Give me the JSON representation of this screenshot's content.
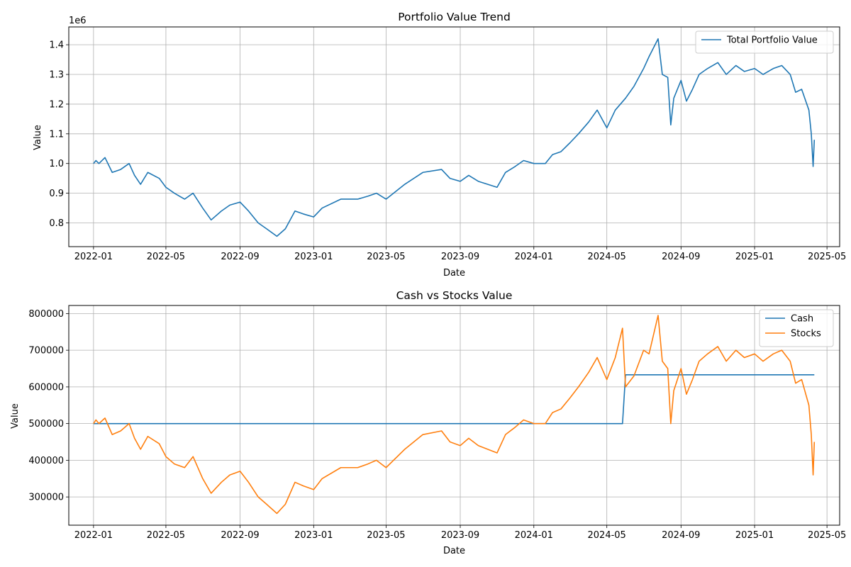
{
  "colors": {
    "series1": "#1f77b4",
    "series2": "#ff7f0e",
    "grid": "#b0b0b0"
  },
  "chart_data": [
    {
      "type": "line",
      "title": "Portfolio Value Trend",
      "xlabel": "Date",
      "ylabel": "Value",
      "y_offset_label": "1e6",
      "x_ticks": [
        "2022-01",
        "2022-05",
        "2022-09",
        "2023-01",
        "2023-05",
        "2023-09",
        "2024-01",
        "2024-05",
        "2024-09",
        "2025-01",
        "2025-05"
      ],
      "y_ticks": [
        "0.8",
        "0.9",
        "1.0",
        "1.1",
        "1.2",
        "1.3",
        "1.4"
      ],
      "xlim": [
        "2021-11-21",
        "2025-05-22"
      ],
      "ylim": [
        0.72,
        1.46
      ],
      "grid": true,
      "legend": "top-right",
      "series": [
        {
          "name": "Total Portfolio Value",
          "color": "#1f77b4",
          "points": [
            [
              "2022-01-01",
              1.0
            ],
            [
              "2022-01-05",
              1.01
            ],
            [
              "2022-01-10",
              1.0
            ],
            [
              "2022-01-20",
              1.02
            ],
            [
              "2022-02-01",
              0.97
            ],
            [
              "2022-02-15",
              0.98
            ],
            [
              "2022-03-01",
              1.0
            ],
            [
              "2022-03-10",
              0.96
            ],
            [
              "2022-03-20",
              0.93
            ],
            [
              "2022-04-01",
              0.97
            ],
            [
              "2022-04-20",
              0.95
            ],
            [
              "2022-05-01",
              0.92
            ],
            [
              "2022-05-15",
              0.9
            ],
            [
              "2022-06-01",
              0.88
            ],
            [
              "2022-06-15",
              0.9
            ],
            [
              "2022-07-01",
              0.85
            ],
            [
              "2022-07-15",
              0.81
            ],
            [
              "2022-08-01",
              0.84
            ],
            [
              "2022-08-15",
              0.86
            ],
            [
              "2022-09-01",
              0.87
            ],
            [
              "2022-09-15",
              0.84
            ],
            [
              "2022-10-01",
              0.8
            ],
            [
              "2022-10-15",
              0.78
            ],
            [
              "2022-11-01",
              0.755
            ],
            [
              "2022-11-15",
              0.78
            ],
            [
              "2022-12-01",
              0.84
            ],
            [
              "2022-12-15",
              0.83
            ],
            [
              "2023-01-01",
              0.82
            ],
            [
              "2023-01-15",
              0.85
            ],
            [
              "2023-02-15",
              0.88
            ],
            [
              "2023-03-15",
              0.88
            ],
            [
              "2023-04-01",
              0.89
            ],
            [
              "2023-04-15",
              0.9
            ],
            [
              "2023-05-01",
              0.88
            ],
            [
              "2023-06-01",
              0.93
            ],
            [
              "2023-07-01",
              0.97
            ],
            [
              "2023-08-01",
              0.98
            ],
            [
              "2023-08-15",
              0.95
            ],
            [
              "2023-09-01",
              0.94
            ],
            [
              "2023-09-15",
              0.96
            ],
            [
              "2023-10-01",
              0.94
            ],
            [
              "2023-11-01",
              0.92
            ],
            [
              "2023-11-15",
              0.97
            ],
            [
              "2023-12-01",
              0.99
            ],
            [
              "2023-12-15",
              1.01
            ],
            [
              "2024-01-01",
              1.0
            ],
            [
              "2024-01-20",
              1.0
            ],
            [
              "2024-02-01",
              1.03
            ],
            [
              "2024-02-15",
              1.04
            ],
            [
              "2024-03-01",
              1.07
            ],
            [
              "2024-03-15",
              1.1
            ],
            [
              "2024-04-01",
              1.14
            ],
            [
              "2024-04-15",
              1.18
            ],
            [
              "2024-05-01",
              1.12
            ],
            [
              "2024-05-15",
              1.18
            ],
            [
              "2024-06-01",
              1.22
            ],
            [
              "2024-06-15",
              1.26
            ],
            [
              "2024-07-01",
              1.32
            ],
            [
              "2024-07-10",
              1.36
            ],
            [
              "2024-07-20",
              1.4
            ],
            [
              "2024-07-25",
              1.42
            ],
            [
              "2024-08-01",
              1.3
            ],
            [
              "2024-08-10",
              1.29
            ],
            [
              "2024-08-15",
              1.13
            ],
            [
              "2024-08-20",
              1.22
            ],
            [
              "2024-09-01",
              1.28
            ],
            [
              "2024-09-10",
              1.21
            ],
            [
              "2024-09-20",
              1.25
            ],
            [
              "2024-10-01",
              1.3
            ],
            [
              "2024-10-15",
              1.32
            ],
            [
              "2024-11-01",
              1.34
            ],
            [
              "2024-11-15",
              1.3
            ],
            [
              "2024-12-01",
              1.33
            ],
            [
              "2024-12-15",
              1.31
            ],
            [
              "2025-01-01",
              1.32
            ],
            [
              "2025-01-15",
              1.3
            ],
            [
              "2025-02-01",
              1.32
            ],
            [
              "2025-02-15",
              1.33
            ],
            [
              "2025-03-01",
              1.3
            ],
            [
              "2025-03-10",
              1.24
            ],
            [
              "2025-03-20",
              1.25
            ],
            [
              "2025-04-01",
              1.18
            ],
            [
              "2025-04-05",
              1.1
            ],
            [
              "2025-04-08",
              0.99
            ],
            [
              "2025-04-10",
              1.08
            ]
          ]
        }
      ]
    },
    {
      "type": "line",
      "title": "Cash vs Stocks Value",
      "xlabel": "Date",
      "ylabel": "Value",
      "x_ticks": [
        "2022-01",
        "2022-05",
        "2022-09",
        "2023-01",
        "2023-05",
        "2023-09",
        "2024-01",
        "2024-05",
        "2024-09",
        "2025-01",
        "2025-05"
      ],
      "y_ticks": [
        "300000",
        "400000",
        "500000",
        "600000",
        "700000",
        "800000"
      ],
      "xlim": [
        "2021-11-21",
        "2025-05-22"
      ],
      "ylim": [
        223000,
        822000
      ],
      "grid": true,
      "legend": "top-right",
      "series": [
        {
          "name": "Cash",
          "color": "#1f77b4",
          "points": [
            [
              "2022-01-01",
              500000
            ],
            [
              "2024-05-27",
              500000
            ],
            [
              "2024-06-01",
              633000
            ],
            [
              "2025-04-10",
              633000
            ]
          ]
        },
        {
          "name": "Stocks",
          "color": "#ff7f0e",
          "points": [
            [
              "2022-01-01",
              500000
            ],
            [
              "2022-01-05",
              510000
            ],
            [
              "2022-01-10",
              500000
            ],
            [
              "2022-01-20",
              515000
            ],
            [
              "2022-02-01",
              470000
            ],
            [
              "2022-02-15",
              480000
            ],
            [
              "2022-03-01",
              500000
            ],
            [
              "2022-03-10",
              460000
            ],
            [
              "2022-03-20",
              430000
            ],
            [
              "2022-04-01",
              465000
            ],
            [
              "2022-04-20",
              445000
            ],
            [
              "2022-05-01",
              410000
            ],
            [
              "2022-05-15",
              390000
            ],
            [
              "2022-06-01",
              380000
            ],
            [
              "2022-06-15",
              410000
            ],
            [
              "2022-07-01",
              350000
            ],
            [
              "2022-07-15",
              310000
            ],
            [
              "2022-08-01",
              340000
            ],
            [
              "2022-08-15",
              360000
            ],
            [
              "2022-09-01",
              370000
            ],
            [
              "2022-09-15",
              340000
            ],
            [
              "2022-10-01",
              300000
            ],
            [
              "2022-10-15",
              280000
            ],
            [
              "2022-11-01",
              255000
            ],
            [
              "2022-11-15",
              280000
            ],
            [
              "2022-12-01",
              340000
            ],
            [
              "2022-12-15",
              330000
            ],
            [
              "2023-01-01",
              320000
            ],
            [
              "2023-01-15",
              350000
            ],
            [
              "2023-02-15",
              380000
            ],
            [
              "2023-03-15",
              380000
            ],
            [
              "2023-04-01",
              390000
            ],
            [
              "2023-04-15",
              400000
            ],
            [
              "2023-05-01",
              380000
            ],
            [
              "2023-06-01",
              430000
            ],
            [
              "2023-07-01",
              470000
            ],
            [
              "2023-08-01",
              480000
            ],
            [
              "2023-08-15",
              450000
            ],
            [
              "2023-09-01",
              440000
            ],
            [
              "2023-09-15",
              460000
            ],
            [
              "2023-10-01",
              440000
            ],
            [
              "2023-11-01",
              420000
            ],
            [
              "2023-11-15",
              470000
            ],
            [
              "2023-12-01",
              490000
            ],
            [
              "2023-12-15",
              510000
            ],
            [
              "2024-01-01",
              500000
            ],
            [
              "2024-01-20",
              500000
            ],
            [
              "2024-02-01",
              530000
            ],
            [
              "2024-02-15",
              540000
            ],
            [
              "2024-03-01",
              570000
            ],
            [
              "2024-03-15",
              600000
            ],
            [
              "2024-04-01",
              640000
            ],
            [
              "2024-04-15",
              680000
            ],
            [
              "2024-05-01",
              620000
            ],
            [
              "2024-05-15",
              680000
            ],
            [
              "2024-05-27",
              760000
            ],
            [
              "2024-06-01",
              600000
            ],
            [
              "2024-06-15",
              630000
            ],
            [
              "2024-07-01",
              700000
            ],
            [
              "2024-07-10",
              690000
            ],
            [
              "2024-07-20",
              760000
            ],
            [
              "2024-07-25",
              795000
            ],
            [
              "2024-08-01",
              670000
            ],
            [
              "2024-08-10",
              650000
            ],
            [
              "2024-08-15",
              500000
            ],
            [
              "2024-08-20",
              590000
            ],
            [
              "2024-09-01",
              650000
            ],
            [
              "2024-09-10",
              580000
            ],
            [
              "2024-09-20",
              620000
            ],
            [
              "2024-10-01",
              670000
            ],
            [
              "2024-10-15",
              690000
            ],
            [
              "2024-11-01",
              710000
            ],
            [
              "2024-11-15",
              670000
            ],
            [
              "2024-12-01",
              700000
            ],
            [
              "2024-12-15",
              680000
            ],
            [
              "2025-01-01",
              690000
            ],
            [
              "2025-01-15",
              670000
            ],
            [
              "2025-02-01",
              690000
            ],
            [
              "2025-02-15",
              700000
            ],
            [
              "2025-03-01",
              670000
            ],
            [
              "2025-03-10",
              610000
            ],
            [
              "2025-03-20",
              620000
            ],
            [
              "2025-04-01",
              550000
            ],
            [
              "2025-04-05",
              470000
            ],
            [
              "2025-04-08",
              360000
            ],
            [
              "2025-04-10",
              450000
            ]
          ]
        }
      ]
    }
  ]
}
